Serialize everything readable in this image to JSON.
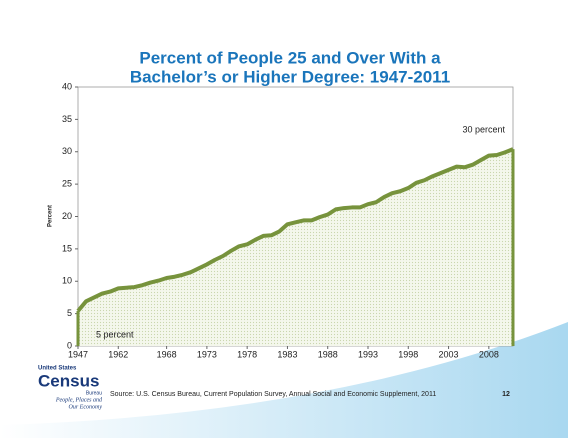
{
  "chart_data": {
    "type": "area",
    "title": [
      "Percent of People 25 and Over With a",
      "Bachelor’s or Higher Degree: 1947-2011"
    ],
    "y_label": "Percent",
    "categories": [
      "1947",
      null,
      null,
      null,
      null,
      "1962",
      null,
      null,
      null,
      null,
      null,
      "1968",
      null,
      null,
      null,
      null,
      "1973",
      null,
      null,
      null,
      null,
      "1978",
      null,
      null,
      null,
      null,
      "1983",
      null,
      null,
      null,
      null,
      "1988",
      null,
      null,
      null,
      null,
      "1993",
      null,
      null,
      null,
      null,
      "1998",
      null,
      null,
      null,
      null,
      "2003",
      null,
      null,
      null,
      null,
      "2008",
      null,
      null,
      null
    ],
    "values": [
      5.4,
      6.9,
      7.5,
      8.1,
      8.4,
      8.9,
      9.0,
      9.1,
      9.4,
      9.8,
      10.1,
      10.5,
      10.7,
      11.0,
      11.4,
      12.0,
      12.6,
      13.3,
      13.9,
      14.7,
      15.4,
      15.7,
      16.4,
      17.0,
      17.1,
      17.7,
      18.8,
      19.1,
      19.4,
      19.4,
      19.9,
      20.3,
      21.1,
      21.3,
      21.4,
      21.4,
      21.9,
      22.2,
      23.0,
      23.6,
      23.9,
      24.4,
      25.2,
      25.6,
      26.2,
      26.7,
      27.2,
      27.7,
      27.6,
      28.0,
      28.7,
      29.4,
      29.5,
      29.9,
      30.4
    ],
    "color": "#77933c",
    "fill": "#eef3e1",
    "ylim": [
      0,
      40
    ],
    "yticks": [
      0,
      5,
      10,
      15,
      20,
      25,
      30,
      35,
      40
    ],
    "grid": false,
    "annotations": [
      "5 percent",
      "30 percent"
    ]
  },
  "footer": {
    "source": "Source: U.S. Census Bureau, Current Population Survey, Annual Social and Economic Supplement, 2011",
    "page": "12",
    "logo": {
      "top": "United States",
      "main": "Census",
      "bureau": "Bureau",
      "tagline": [
        "People, Places and",
        "Our Economy"
      ]
    }
  }
}
